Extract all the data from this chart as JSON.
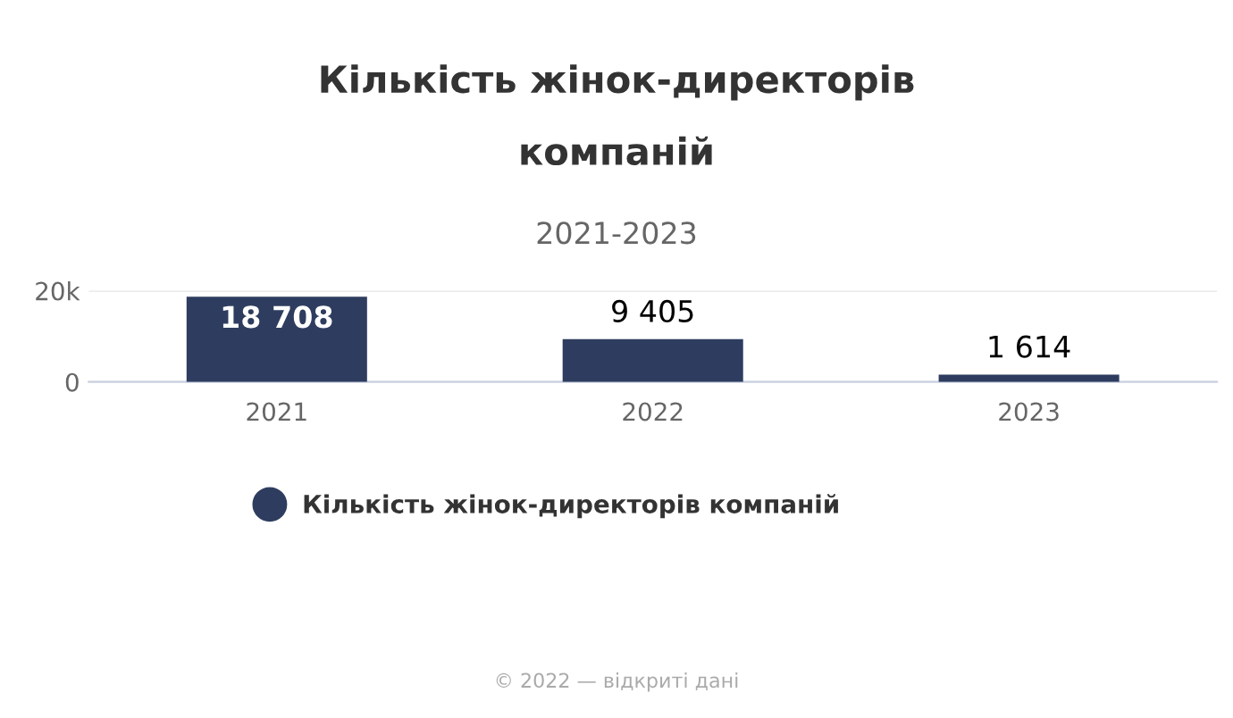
{
  "chart_data": {
    "type": "bar",
    "title": "Кількість жінок-директорів\n\nкомпаній",
    "subtitle": "2021-2023",
    "categories": [
      "2021",
      "2022",
      "2023"
    ],
    "series": [
      {
        "name": "Кількість жінок-директорів компаній",
        "color": "#2e3d5f",
        "values": [
          18708,
          9405,
          1614
        ]
      }
    ],
    "value_labels": [
      "18 708",
      "9 405",
      "1 614"
    ],
    "ylim": [
      0,
      20000
    ],
    "yticks": [
      0,
      {
        "value": 20000,
        "label": "20k"
      }
    ],
    "grid": "y",
    "legend": "bottom",
    "annotations": [
      "© 2022 — відкриті дані"
    ]
  }
}
